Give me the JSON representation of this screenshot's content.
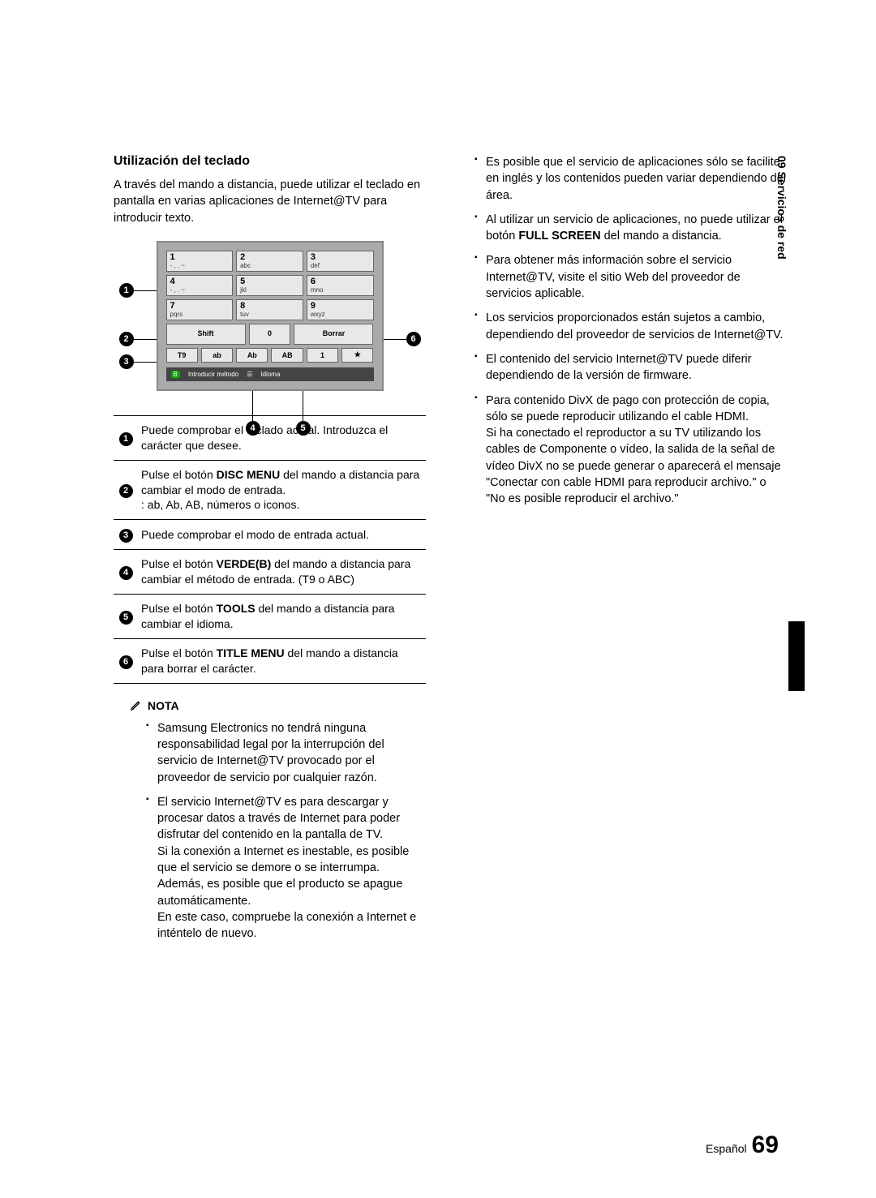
{
  "section_tab": "09  Servicios de red",
  "left": {
    "title": "Utilización del teclado",
    "intro": "A través del mando a distancia, puede utilizar el teclado en pantalla en varias aplicaciones de Internet@TV para introducir texto.",
    "keyboard": {
      "rows": [
        [
          {
            "p1": "1",
            "p2": "- , . ~"
          },
          {
            "p1": "2",
            "p2": "abc"
          },
          {
            "p1": "3",
            "p2": "def"
          }
        ],
        [
          {
            "p1": "4",
            "p2": "- , . ~"
          },
          {
            "p1": "5",
            "p2": "jkl"
          },
          {
            "p1": "6",
            "p2": "mno"
          }
        ],
        [
          {
            "p1": "7",
            "p2": "pqrs"
          },
          {
            "p1": "8",
            "p2": "tuv"
          },
          {
            "p1": "9",
            "p2": "wxyz"
          }
        ]
      ],
      "shift": "Shift",
      "zero": "0",
      "delete": "Borrar",
      "modes": [
        "T9",
        "ab",
        "Ab",
        "AB",
        "1",
        "★"
      ],
      "status_b": "B",
      "status_text1": "Introducir método",
      "status_text2": "Idioma"
    },
    "legend": [
      "Puede comprobar el teclado actual. Introduzca el carácter que desee.",
      "Pulse el botón <b>DISC MENU</b> del mando a distancia para cambiar el modo de entrada.<br>: ab, Ab, AB, números o iconos.",
      "Puede comprobar el modo de entrada actual.",
      "Pulse el botón <b>VERDE(B)</b> del mando a distancia para cambiar el método de entrada. (T9 o ABC)",
      "Pulse el botón <b>TOOLS</b> del mando a distancia para cambiar el idioma.",
      "Pulse el botón <b>TITLE MENU</b> del mando a distancia para borrar el carácter."
    ],
    "nota_label": "NOTA",
    "notes": [
      "Samsung Electronics no tendrá ninguna responsabilidad legal por la interrupción del servicio de Internet@TV provocado por el proveedor de servicio por cualquier razón.",
      "El servicio Internet@TV es para descargar y procesar datos a través de Internet para poder disfrutar del contenido en la pantalla de TV.<br>Si la conexión a Internet es inestable, es posible que el servicio se demore o se interrumpa.<br>Además, es posible que el producto se apague automáticamente.<br>En este caso, compruebe la conexión a Internet e inténtelo de nuevo."
    ]
  },
  "right": {
    "notes": [
      "Es posible que el servicio de aplicaciones sólo se facilite en inglés y los contenidos pueden variar dependiendo del área.",
      "Al utilizar un servicio de aplicaciones, no puede utilizar el botón <b>FULL SCREEN</b> del mando a distancia.",
      "Para obtener más información sobre el servicio Internet@TV, visite el sitio Web del proveedor de servicios aplicable.",
      "Los servicios proporcionados están sujetos a cambio, dependiendo del proveedor de servicios de Internet@TV.",
      "El contenido del servicio Internet@TV puede diferir dependiendo de la versión de firmware.",
      "Para contenido DivX de pago con protección de copia, sólo se puede reproducir utilizando el cable HDMI.<br>Si ha conectado el reproductor a su TV utilizando los cables de Componente o vídeo, la salida de la señal de vídeo DivX no se puede generar o aparecerá el mensaje \"Conectar con cable HDMI para reproducir archivo.\" o \"No es posible reproducir el archivo.\""
    ]
  },
  "footer": {
    "lang": "Español",
    "page": "69"
  }
}
